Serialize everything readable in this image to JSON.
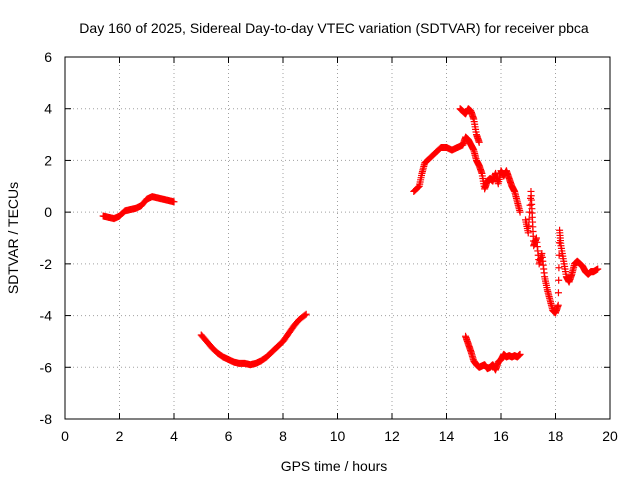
{
  "chart_data": {
    "type": "scatter",
    "title": "Day 160 of 2025, Sidereal Day-to-day VTEC variation (SDTVAR) for receiver pbca",
    "xlabel": "GPS time / hours",
    "ylabel": "SDTVAR / TECUs",
    "xlim": [
      0,
      20
    ],
    "ylim": [
      -8,
      6
    ],
    "xticks": [
      0,
      2,
      4,
      6,
      8,
      10,
      12,
      14,
      16,
      18,
      20
    ],
    "yticks": [
      -8,
      -6,
      -4,
      -2,
      0,
      2,
      4,
      6
    ],
    "grid": true,
    "marker": "plus",
    "marker_color": "#ff0000",
    "series": [
      {
        "points": [
          [
            1.4,
            -0.15
          ],
          [
            1.6,
            -0.2
          ],
          [
            1.8,
            -0.25
          ],
          [
            2.0,
            -0.15
          ],
          [
            2.2,
            0.05
          ],
          [
            2.4,
            0.1
          ],
          [
            2.6,
            0.15
          ],
          [
            2.8,
            0.25
          ],
          [
            3.0,
            0.5
          ],
          [
            3.2,
            0.6
          ],
          [
            3.4,
            0.55
          ],
          [
            3.6,
            0.5
          ],
          [
            3.8,
            0.45
          ],
          [
            4.0,
            0.4
          ]
        ]
      },
      {
        "points": [
          [
            5.0,
            -4.75
          ],
          [
            5.2,
            -5.0
          ],
          [
            5.4,
            -5.25
          ],
          [
            5.6,
            -5.45
          ],
          [
            5.8,
            -5.6
          ],
          [
            6.0,
            -5.7
          ],
          [
            6.2,
            -5.8
          ],
          [
            6.4,
            -5.85
          ],
          [
            6.6,
            -5.85
          ],
          [
            6.8,
            -5.9
          ],
          [
            7.0,
            -5.85
          ],
          [
            7.2,
            -5.75
          ],
          [
            7.4,
            -5.6
          ],
          [
            7.6,
            -5.4
          ],
          [
            7.8,
            -5.2
          ],
          [
            8.0,
            -5.0
          ],
          [
            8.2,
            -4.7
          ],
          [
            8.4,
            -4.4
          ],
          [
            8.6,
            -4.15
          ],
          [
            8.85,
            -3.95
          ]
        ]
      },
      {
        "points": [
          [
            12.8,
            0.8
          ],
          [
            13.0,
            1.0
          ],
          [
            13.1,
            1.5
          ],
          [
            13.2,
            1.9
          ],
          [
            13.4,
            2.1
          ],
          [
            13.6,
            2.3
          ],
          [
            13.8,
            2.5
          ],
          [
            14.0,
            2.5
          ],
          [
            14.2,
            2.4
          ],
          [
            14.4,
            2.5
          ],
          [
            14.6,
            2.6
          ],
          [
            14.7,
            2.9
          ],
          [
            14.8,
            2.8
          ],
          [
            14.9,
            2.6
          ],
          [
            15.0,
            2.4
          ],
          [
            15.1,
            2.0
          ],
          [
            15.2,
            1.8
          ],
          [
            15.3,
            1.5
          ],
          [
            15.4,
            0.9
          ],
          [
            15.5,
            1.2
          ],
          [
            15.6,
            1.3
          ],
          [
            15.7,
            1.2
          ],
          [
            15.8,
            1.5
          ],
          [
            15.9,
            1.1
          ],
          [
            16.0,
            1.6
          ],
          [
            16.1,
            1.4
          ],
          [
            16.2,
            1.6
          ],
          [
            16.3,
            1.3
          ],
          [
            16.4,
            1.0
          ],
          [
            16.5,
            0.8
          ],
          [
            16.6,
            0.4
          ],
          [
            16.7,
            0.0
          ]
        ]
      },
      {
        "points": [
          [
            14.5,
            4.0
          ],
          [
            14.6,
            3.9
          ],
          [
            14.7,
            3.8
          ],
          [
            14.8,
            4.0
          ],
          [
            14.9,
            3.9
          ],
          [
            15.0,
            3.6
          ],
          [
            15.1,
            3.0
          ],
          [
            15.2,
            2.7
          ]
        ]
      },
      {
        "points": [
          [
            16.9,
            -0.3
          ],
          [
            17.0,
            -0.8
          ],
          [
            17.1,
            0.8
          ],
          [
            17.15,
            -0.2
          ],
          [
            17.2,
            -1.3
          ],
          [
            17.3,
            -1.0
          ],
          [
            17.4,
            -2.0
          ],
          [
            17.5,
            -1.6
          ],
          [
            17.6,
            -2.5
          ],
          [
            17.7,
            -3.0
          ],
          [
            17.8,
            -3.4
          ],
          [
            17.9,
            -3.8
          ],
          [
            18.0,
            -3.9
          ],
          [
            18.1,
            -3.6
          ],
          [
            18.15,
            -0.7
          ],
          [
            18.2,
            -1.3
          ],
          [
            18.3,
            -1.9
          ],
          [
            18.4,
            -2.5
          ],
          [
            18.5,
            -2.7
          ],
          [
            18.6,
            -2.4
          ],
          [
            18.7,
            -2.0
          ],
          [
            18.8,
            -1.9
          ],
          [
            18.9,
            -2.0
          ],
          [
            19.0,
            -2.1
          ],
          [
            19.1,
            -2.3
          ],
          [
            19.2,
            -2.4
          ],
          [
            19.3,
            -2.3
          ],
          [
            19.4,
            -2.3
          ],
          [
            19.55,
            -2.2
          ]
        ]
      },
      {
        "points": [
          [
            14.7,
            -4.8
          ],
          [
            14.8,
            -5.1
          ],
          [
            14.9,
            -5.4
          ],
          [
            15.0,
            -5.75
          ],
          [
            15.1,
            -5.9
          ],
          [
            15.2,
            -6.0
          ],
          [
            15.3,
            -5.95
          ],
          [
            15.4,
            -5.9
          ],
          [
            15.5,
            -6.05
          ],
          [
            15.6,
            -6.0
          ],
          [
            15.7,
            -5.9
          ],
          [
            15.8,
            -6.1
          ],
          [
            15.9,
            -5.8
          ],
          [
            16.0,
            -5.7
          ],
          [
            16.1,
            -5.5
          ],
          [
            16.2,
            -5.6
          ],
          [
            16.3,
            -5.55
          ],
          [
            16.4,
            -5.6
          ],
          [
            16.5,
            -5.55
          ],
          [
            16.6,
            -5.6
          ],
          [
            16.7,
            -5.5
          ]
        ]
      }
    ]
  }
}
